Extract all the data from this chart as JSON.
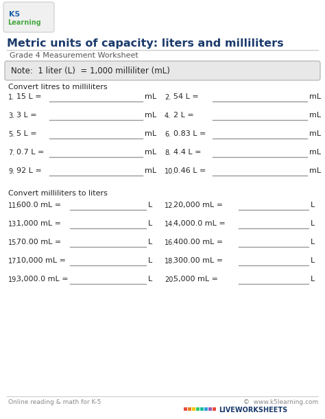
{
  "title": "Metric units of capacity: liters and milliliters",
  "subtitle": "Grade 4 Measurement Worksheet",
  "note": "Note:  1 liter (L)  = 1,000 milliliter (mL)",
  "section1_header": "Convert litres to milliliters",
  "section2_header": "Convert milliliters to liters",
  "col1_items": [
    {
      "num": "1.",
      "text": "15 L =",
      "unit": "mL"
    },
    {
      "num": "3.",
      "text": "3 L =",
      "unit": "mL"
    },
    {
      "num": "5.",
      "text": "5 L =",
      "unit": "mL"
    },
    {
      "num": "7.",
      "text": "0.7 L =",
      "unit": "mL"
    },
    {
      "num": "9.",
      "text": "92 L =",
      "unit": "mL"
    }
  ],
  "col2_items": [
    {
      "num": "2.",
      "text": "54 L =",
      "unit": "mL"
    },
    {
      "num": "4.",
      "text": "2 L =",
      "unit": "mL"
    },
    {
      "num": "6.",
      "text": "0.83 L =",
      "unit": "mL"
    },
    {
      "num": "8.",
      "text": "4.4 L =",
      "unit": "mL"
    },
    {
      "num": "10.",
      "text": "0.46 L =",
      "unit": "mL"
    }
  ],
  "col3_items": [
    {
      "num": "11.",
      "text": "600.0 mL =",
      "unit": "L"
    },
    {
      "num": "13.",
      "text": "1,000 mL =",
      "unit": "L"
    },
    {
      "num": "15.",
      "text": "70.00 mL =",
      "unit": "L"
    },
    {
      "num": "17.",
      "text": "10,000 mL =",
      "unit": "L"
    },
    {
      "num": "19.",
      "text": "3,000.0 mL =",
      "unit": "L"
    }
  ],
  "col4_items": [
    {
      "num": "12.",
      "text": "20,000 mL =",
      "unit": "L"
    },
    {
      "num": "14.",
      "text": "4,000.0 mL =",
      "unit": "L"
    },
    {
      "num": "16.",
      "text": "400.00 mL =",
      "unit": "L"
    },
    {
      "num": "18.",
      "text": "300.00 mL =",
      "unit": "L"
    },
    {
      "num": "20.",
      "text": "5,000 mL =",
      "unit": "L"
    }
  ],
  "footer_left": "Online reading & math for K-5",
  "footer_right": "©  www.k5learning.com",
  "bg_color": "#ffffff",
  "note_bg_color": "#e8e8e8",
  "title_color": "#1a3a6b",
  "subtitle_color": "#555555",
  "text_color": "#222222",
  "footer_color": "#888888",
  "line_color": "#999999",
  "logo_k5_color": "#1a5fa8",
  "logo_learn_color": "#4aaa44"
}
